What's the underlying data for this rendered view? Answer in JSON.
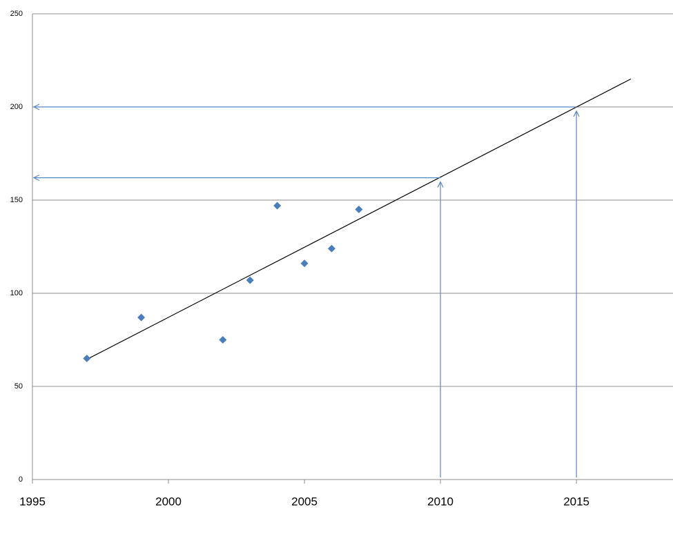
{
  "chart_data": {
    "type": "scatter",
    "points": {
      "x": [
        1997,
        1999,
        2002,
        2003,
        2004,
        2005,
        2006,
        2007
      ],
      "values": [
        65,
        87,
        75,
        107,
        147,
        116,
        124,
        145
      ],
      "color": "#4a7ebb"
    },
    "trendline": {
      "x": [
        1997,
        2017
      ],
      "values": [
        64.5,
        215
      ],
      "color": "#000000"
    },
    "annotations": [
      {
        "x": 2010,
        "y": 162
      },
      {
        "x": 2015,
        "y": 200
      }
    ],
    "annotation_color": "#5b87c0",
    "xlim": [
      1995,
      2018.55
    ],
    "xticks": [
      1995,
      2000,
      2005,
      2010,
      2015
    ],
    "ylim": [
      0,
      250
    ],
    "yticks": [
      0,
      50,
      100,
      150,
      200,
      250
    ],
    "grid": true
  }
}
